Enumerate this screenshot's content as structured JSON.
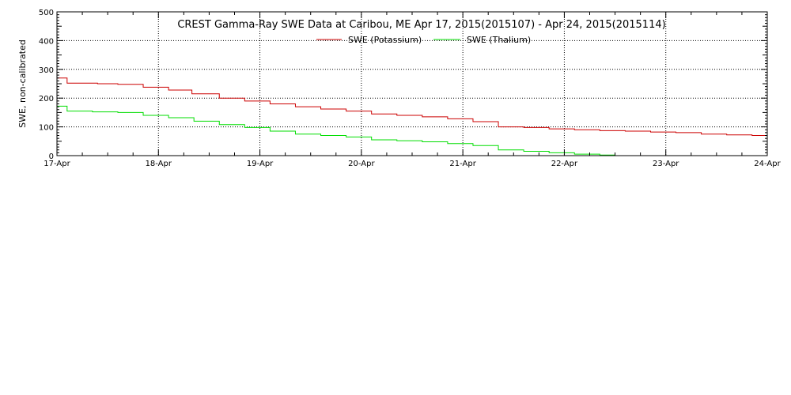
{
  "chart_data": {
    "type": "line",
    "title": "CREST Gamma-Ray SWE Data at Caribou, ME   Apr 17, 2015(2015107) - Apr 24, 2015(2015114)",
    "xlabel": "",
    "ylabel": "SWE, non-calibrated",
    "x_tick_labels": [
      "17-Apr",
      "18-Apr",
      "19-Apr",
      "20-Apr",
      "21-Apr",
      "22-Apr",
      "23-Apr",
      "24-Apr"
    ],
    "y_tick_labels": [
      "0",
      "100",
      "200",
      "300",
      "400",
      "500"
    ],
    "xlim": [
      0,
      7
    ],
    "ylim": [
      0,
      500
    ],
    "grid": true,
    "legend_position": "top-center",
    "series": [
      {
        "name": "SWE (Potassium)",
        "color": "#cc0000",
        "step": true,
        "x": [
          0,
          0.1,
          0.4,
          0.6,
          0.85,
          1.1,
          1.33,
          1.6,
          1.85,
          2.1,
          2.35,
          2.6,
          2.85,
          3.1,
          3.35,
          3.6,
          3.85,
          4.1,
          4.35,
          4.6,
          4.85,
          5.1,
          5.35,
          5.6,
          5.85,
          6.1,
          6.35,
          6.6,
          6.85,
          7
        ],
        "y": [
          270,
          252,
          250,
          248,
          238,
          228,
          215,
          200,
          190,
          180,
          170,
          162,
          155,
          145,
          140,
          135,
          128,
          118,
          100,
          98,
          93,
          90,
          87,
          85,
          82,
          80,
          75,
          72,
          70,
          68
        ]
      },
      {
        "name": "SWE (Thalium)",
        "color": "#00dd00",
        "step": true,
        "x": [
          0,
          0.1,
          0.35,
          0.6,
          0.85,
          1.1,
          1.35,
          1.6,
          1.85,
          2.1,
          2.35,
          2.6,
          2.85,
          3.1,
          3.35,
          3.6,
          3.85,
          4.1,
          4.35,
          4.6,
          4.85,
          5.1,
          5.35,
          5.5
        ],
        "y": [
          172,
          155,
          152,
          150,
          140,
          132,
          120,
          108,
          98,
          85,
          75,
          70,
          65,
          55,
          52,
          48,
          42,
          35,
          20,
          15,
          10,
          5,
          2,
          0
        ]
      }
    ]
  }
}
